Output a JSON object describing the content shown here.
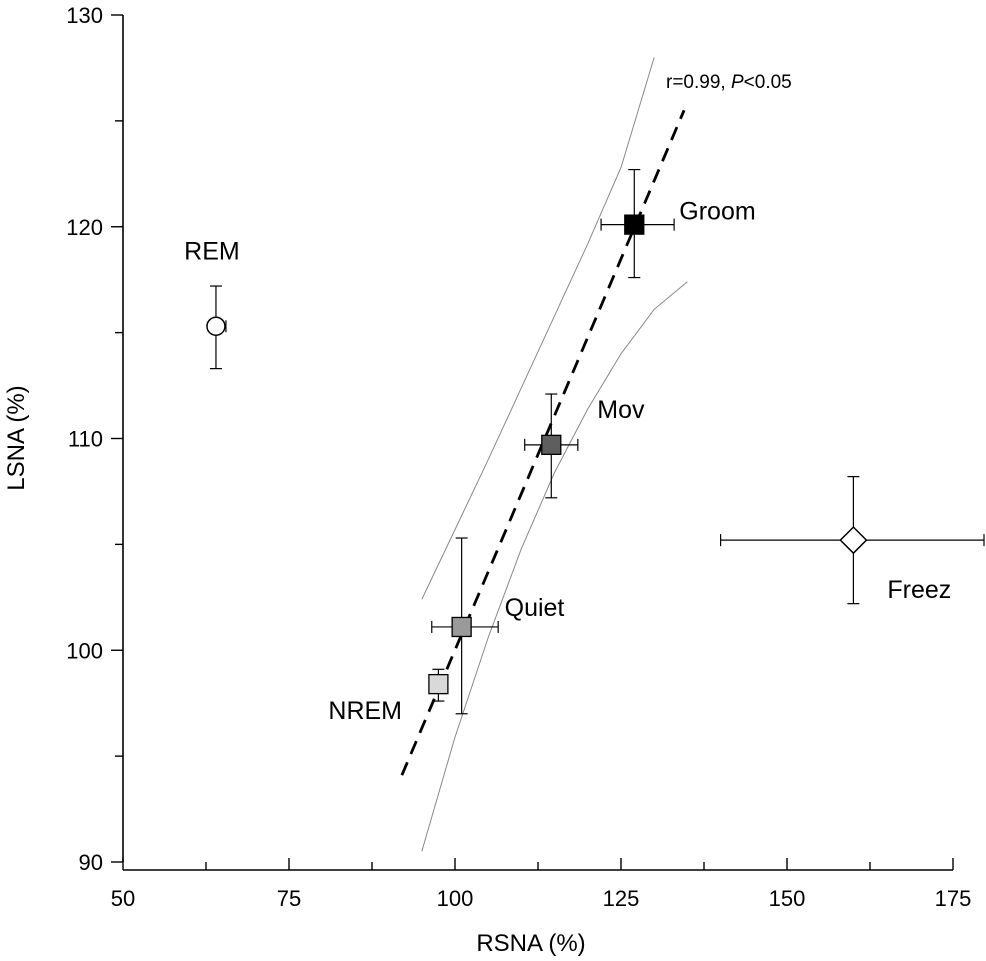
{
  "chart_data": {
    "type": "scatter",
    "xlabel": "RSNA (%)",
    "ylabel": "LSNA (%)",
    "xlim": [
      50,
      175
    ],
    "ylim": [
      90,
      130
    ],
    "xticks": [
      50,
      75,
      100,
      125,
      150,
      175
    ],
    "yticks": [
      90,
      100,
      110,
      120,
      130
    ],
    "annotation": {
      "prefix": "r=0.99, ",
      "italic": "P",
      "suffix": "<0.05"
    },
    "points": [
      {
        "label": "REM",
        "x": 64,
        "y": 115.3,
        "xerr": [
          63,
          65.5
        ],
        "yerr": [
          113.3,
          117.2
        ],
        "marker": "circle",
        "fill": "#ffffff"
      },
      {
        "label": "NREM",
        "x": 97.5,
        "y": 98.4,
        "xerr": [
          97,
          98
        ],
        "yerr": [
          97.6,
          99.1
        ],
        "marker": "square",
        "fill": "#d9d9d9"
      },
      {
        "label": "Quiet",
        "x": 101,
        "y": 101.1,
        "xerr": [
          96.5,
          106.5
        ],
        "yerr": [
          97,
          105.3
        ],
        "marker": "square",
        "fill": "#9a9a9a"
      },
      {
        "label": "Mov",
        "x": 114.5,
        "y": 109.7,
        "xerr": [
          110.5,
          118.5
        ],
        "yerr": [
          107.2,
          112.1
        ],
        "marker": "square",
        "fill": "#5e5e5e"
      },
      {
        "label": "Groom",
        "x": 127,
        "y": 120.1,
        "xerr": [
          122,
          133
        ],
        "yerr": [
          117.6,
          122.7
        ],
        "marker": "square",
        "fill": "#000000"
      },
      {
        "label": "Freez",
        "x": 160,
        "y": 105.2,
        "xerr": [
          140,
          180
        ],
        "yerr": [
          102.2,
          108.2
        ],
        "marker": "diamond",
        "fill": "#ffffff"
      }
    ],
    "regression_line": {
      "x": [
        92,
        134.5
      ],
      "y": [
        94.1,
        125.5
      ]
    },
    "confidence_upper": [
      [
        95,
        102.4
      ],
      [
        100,
        105.7
      ],
      [
        105,
        109.0
      ],
      [
        110,
        112.4
      ],
      [
        115,
        115.8
      ],
      [
        120,
        119.2
      ],
      [
        125,
        122.8
      ],
      [
        130,
        128.0
      ]
    ],
    "confidence_lower": [
      [
        95,
        90.5
      ],
      [
        100,
        95.9
      ],
      [
        105,
        100.6
      ],
      [
        110,
        104.8
      ],
      [
        115,
        108.4
      ],
      [
        120,
        111.4
      ],
      [
        125,
        114.0
      ],
      [
        130,
        116.1
      ],
      [
        135,
        117.4
      ]
    ],
    "grid": false,
    "legend": "none"
  }
}
